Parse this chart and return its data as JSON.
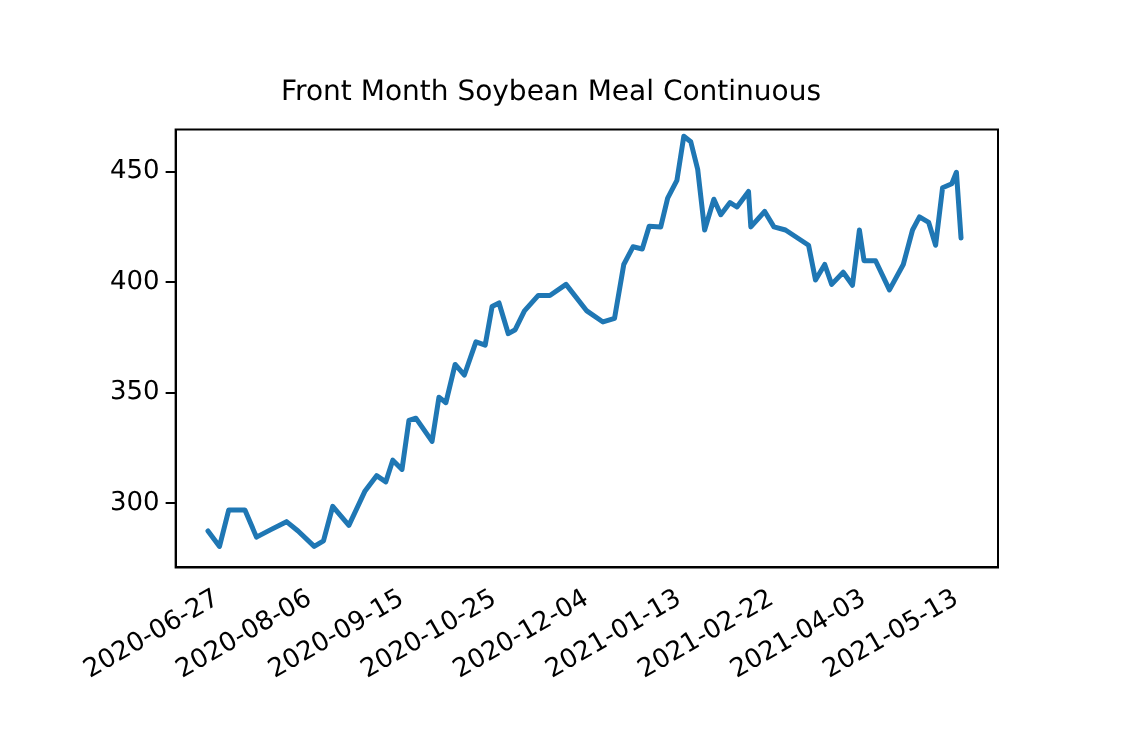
{
  "chart_data": {
    "type": "line",
    "title": "Front Month Soybean Meal Continuous",
    "x": [
      "2020-06-23",
      "2020-06-28",
      "2020-07-02",
      "2020-07-09",
      "2020-07-14",
      "2020-07-20",
      "2020-07-27",
      "2020-08-01",
      "2020-08-08",
      "2020-08-12",
      "2020-08-16",
      "2020-08-23",
      "2020-08-30",
      "2020-09-04",
      "2020-09-08",
      "2020-09-11",
      "2020-09-15",
      "2020-09-18",
      "2020-09-21",
      "2020-09-28",
      "2020-10-01",
      "2020-10-04",
      "2020-10-08",
      "2020-10-12",
      "2020-10-17",
      "2020-10-21",
      "2020-10-24",
      "2020-10-27",
      "2020-10-31",
      "2020-11-03",
      "2020-11-07",
      "2020-11-13",
      "2020-11-18",
      "2020-11-25",
      "2020-12-04",
      "2020-12-11",
      "2020-12-16",
      "2020-12-20",
      "2020-12-24",
      "2020-12-28",
      "2020-12-31",
      "2021-01-05",
      "2021-01-08",
      "2021-01-12",
      "2021-01-15",
      "2021-01-18",
      "2021-01-21",
      "2021-01-24",
      "2021-01-28",
      "2021-01-31",
      "2021-02-04",
      "2021-02-07",
      "2021-02-12",
      "2021-02-13",
      "2021-02-19",
      "2021-02-23",
      "2021-02-28",
      "2021-03-10",
      "2021-03-13",
      "2021-03-17",
      "2021-03-20",
      "2021-03-25",
      "2021-03-29",
      "2021-04-01",
      "2021-04-03",
      "2021-04-08",
      "2021-04-14",
      "2021-04-20",
      "2021-04-24",
      "2021-04-27",
      "2021-05-01",
      "2021-05-04",
      "2021-05-07",
      "2021-05-11",
      "2021-05-13",
      "2021-05-15"
    ],
    "series": [
      {
        "color": "#1f77b4",
        "values": [
          287.5,
          280.5,
          297,
          297,
          284.7,
          288,
          291.7,
          287.5,
          280.5,
          283,
          298.6,
          290,
          305.6,
          312.5,
          309.7,
          319.5,
          315.3,
          337.5,
          338.5,
          328,
          348,
          345.5,
          362.8,
          358,
          373,
          371.5,
          389,
          390.6,
          376.7,
          378.5,
          387,
          394,
          394,
          399,
          387,
          382,
          383.6,
          408,
          416,
          415,
          425.3,
          425,
          438,
          446,
          466,
          463.5,
          451,
          423.6,
          437.5,
          430.5,
          436,
          434,
          441,
          425,
          432,
          425,
          423.6,
          416.7,
          401,
          408,
          399,
          404.5,
          398.6,
          423.6,
          409.7,
          409.7,
          396.5,
          408,
          423.6,
          429.5,
          427,
          416.7,
          442.7,
          444.5,
          449.7,
          420
        ]
      }
    ],
    "xlim": [
      "2020-06-09",
      "2021-05-31"
    ],
    "xticks": [
      "2020-06-27",
      "2020-08-06",
      "2020-09-15",
      "2020-10-25",
      "2020-12-04",
      "2021-01-13",
      "2021-02-22",
      "2021-04-03",
      "2021-05-13"
    ],
    "ylim": [
      271,
      469
    ],
    "yticks": [
      300,
      350,
      400,
      450
    ],
    "grid": false,
    "legend": false,
    "marker": "none",
    "line_style": "solid"
  }
}
